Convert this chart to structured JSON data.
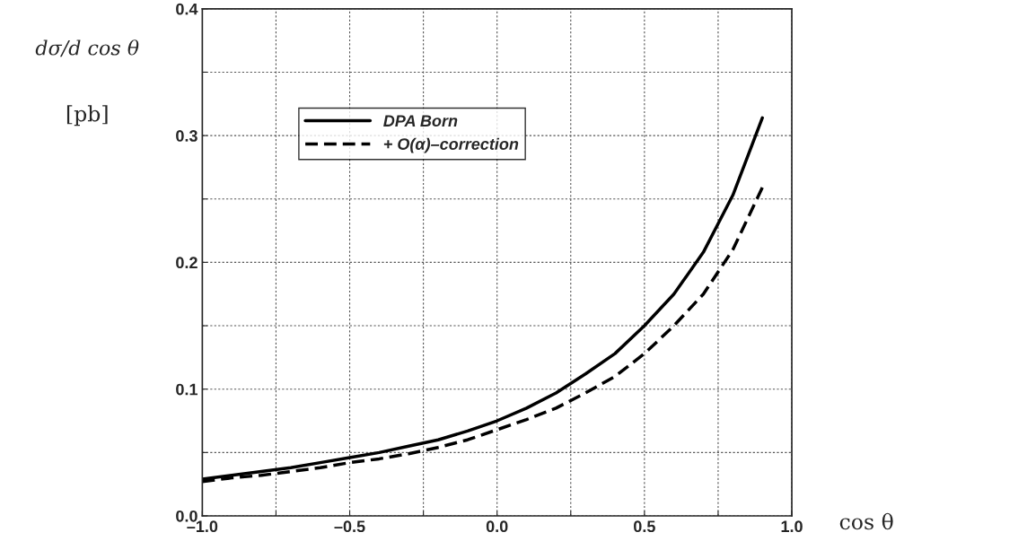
{
  "chart_data": {
    "type": "line",
    "xlabel": "cos θ",
    "ylabel": "dσ/d cos θ",
    "annotations": [
      "[pb]"
    ],
    "x": [
      -1.0,
      -0.9,
      -0.8,
      -0.7,
      -0.6,
      -0.5,
      -0.4,
      -0.3,
      -0.2,
      -0.1,
      0.0,
      0.1,
      0.2,
      0.3,
      0.4,
      0.5,
      0.6,
      0.7,
      0.8,
      0.9
    ],
    "series": [
      {
        "name": "DPA Born",
        "color": "#000000",
        "line_style": "solid",
        "values": [
          0.029,
          0.032,
          0.035,
          0.038,
          0.042,
          0.046,
          0.05,
          0.055,
          0.06,
          0.067,
          0.075,
          0.085,
          0.097,
          0.112,
          0.128,
          0.15,
          0.175,
          0.208,
          0.253,
          0.314
        ]
      },
      {
        "name": "+ O(α)–correction",
        "color": "#000000",
        "line_style": "dashed",
        "values": [
          0.027,
          0.03,
          0.032,
          0.035,
          0.038,
          0.042,
          0.045,
          0.049,
          0.054,
          0.06,
          0.068,
          0.076,
          0.085,
          0.097,
          0.11,
          0.128,
          0.15,
          0.175,
          0.21,
          0.259
        ]
      }
    ],
    "xlim": [
      -1.0,
      1.0
    ],
    "xticks": [
      {
        "value": -1.0,
        "label": "–1.0"
      },
      {
        "value": -0.75,
        "label": null
      },
      {
        "value": -0.5,
        "label": "–0.5"
      },
      {
        "value": -0.25,
        "label": null
      },
      {
        "value": 0.0,
        "label": "0.0"
      },
      {
        "value": 0.25,
        "label": null
      },
      {
        "value": 0.5,
        "label": "0.5"
      },
      {
        "value": 0.75,
        "label": null
      },
      {
        "value": 1.0,
        "label": "1.0"
      }
    ],
    "ylim": [
      0.0,
      0.4
    ],
    "yticks": [
      {
        "value": 0.0,
        "label": "0.0"
      },
      {
        "value": 0.05,
        "label": null
      },
      {
        "value": 0.1,
        "label": "0.1"
      },
      {
        "value": 0.15,
        "label": null
      },
      {
        "value": 0.2,
        "label": "0.2"
      },
      {
        "value": 0.25,
        "label": null
      },
      {
        "value": 0.3,
        "label": "0.3"
      },
      {
        "value": 0.35,
        "label": null
      },
      {
        "value": 0.4,
        "label": "0.4"
      }
    ],
    "grid": true,
    "legend": "top left"
  }
}
